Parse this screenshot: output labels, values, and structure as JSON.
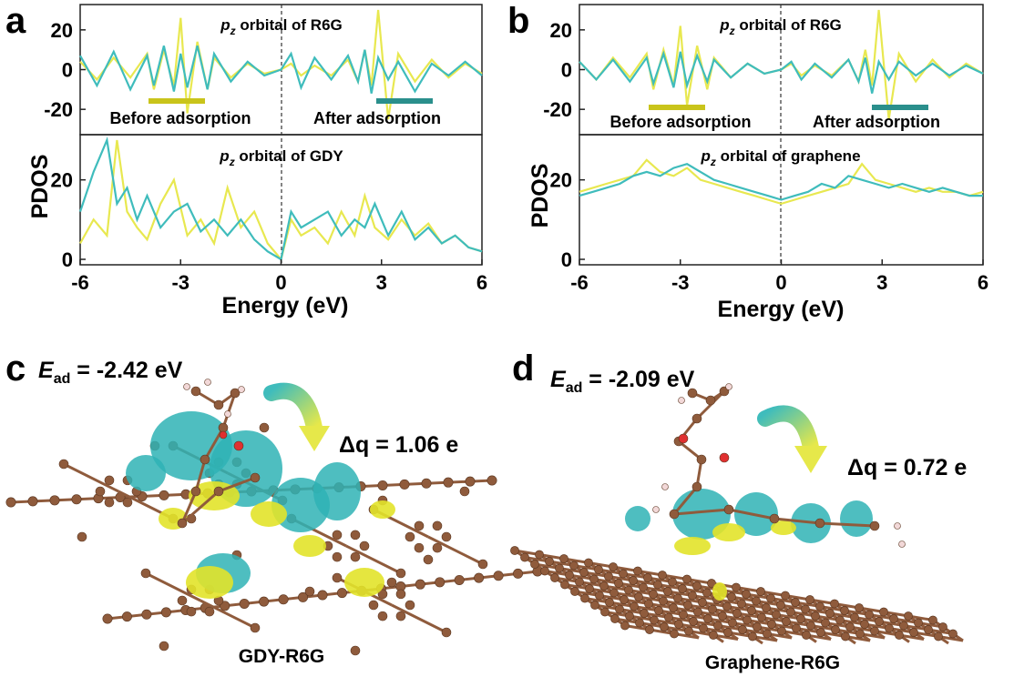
{
  "colors": {
    "before": "#e8e850",
    "after": "#3fbcbc",
    "before_bar": "#c9c41b",
    "after_bar": "#2a8f8c",
    "carbon": "#8f5b3c",
    "hydrogen": "#f2d8d8",
    "oxygen": "#e03030"
  },
  "panels": {
    "a": {
      "letter": "a",
      "top_title_main": "p",
      "top_title_sub": "z",
      "top_title_rest": " orbital of R6G",
      "bottom_title_main": "p",
      "bottom_title_sub": "z",
      "bottom_title_rest": " orbital of GDY",
      "before_label": "Before adsorption",
      "after_label": "After adsorption"
    },
    "b": {
      "letter": "b",
      "top_title_main": "p",
      "top_title_sub": "z",
      "top_title_rest": " orbital of R6G",
      "bottom_title_main": "p",
      "bottom_title_sub": "z",
      "bottom_title_rest": " orbital of graphene",
      "before_label": "Before adsorption",
      "after_label": "After adsorption"
    },
    "c": {
      "letter": "c",
      "ead_symbol": "E",
      "ead_sub": "ad",
      "ead_value": " = -2.42 eV",
      "dq_symbol": "Δq",
      "dq_value": " = 1.06 e",
      "label": "GDY-R6G"
    },
    "d": {
      "letter": "d",
      "ead_symbol": "E",
      "ead_sub": "ad",
      "ead_value": " = -2.09 eV",
      "dq_symbol": "Δq",
      "dq_value": " = 0.72 e",
      "label": "Graphene-R6G"
    }
  },
  "chart_data": [
    {
      "type": "line",
      "panel": "a",
      "xlabel": "Energy (eV)",
      "ylabel": "PDOS",
      "xlim": [
        -6,
        6
      ],
      "xticks": [
        "-6",
        "-3",
        "0",
        "3",
        "6"
      ],
      "subplots": [
        {
          "title": "pz orbital of R6G",
          "ylim": [
            -30,
            30
          ],
          "yticks": [
            "20",
            "0",
            "-20"
          ],
          "series": [
            {
              "name": "Before adsorption",
              "x": [
                -6,
                -5.5,
                -5,
                -4.5,
                -4,
                -3.8,
                -3.5,
                -3.2,
                -3.0,
                -2.8,
                -2.5,
                -2.2,
                -2.0,
                -1.5,
                -1,
                -0.5,
                0,
                0.3,
                0.6,
                1,
                1.5,
                2,
                2.3,
                2.5,
                2.7,
                2.9,
                3.2,
                3.5,
                4,
                4.5,
                5,
                5.5,
                6
              ],
              "y": [
                4,
                -5,
                6,
                -4,
                8,
                -10,
                10,
                -8,
                26,
                -22,
                14,
                -10,
                6,
                -4,
                3,
                -2,
                0,
                3,
                -3,
                2,
                -3,
                5,
                -6,
                10,
                -8,
                30,
                -25,
                8,
                -6,
                5,
                -4,
                3,
                -2
              ]
            },
            {
              "name": "After adsorption",
              "x": [
                -6,
                -5.5,
                -5,
                -4.5,
                -4,
                -3.8,
                -3.5,
                -3.2,
                -3.0,
                -2.8,
                -2.5,
                -2.2,
                -2.0,
                -1.5,
                -1,
                -0.5,
                0,
                0.3,
                0.6,
                1,
                1.5,
                2,
                2.3,
                2.5,
                2.7,
                2.9,
                3.2,
                3.5,
                4,
                4.5,
                5,
                5.5,
                6
              ],
              "y": [
                7,
                -8,
                9,
                -10,
                7,
                -8,
                12,
                -11,
                8,
                -9,
                12,
                -10,
                8,
                -6,
                4,
                -3,
                0,
                8,
                -9,
                6,
                -5,
                7,
                -6,
                10,
                -12,
                6,
                -5,
                4,
                -11,
                3,
                -3,
                4,
                -3
              ]
            }
          ]
        },
        {
          "title": "pz orbital of GDY",
          "ylim": [
            0,
            30
          ],
          "yticks": [
            "20",
            "0"
          ],
          "series": [
            {
              "name": "Before adsorption",
              "x": [
                -6,
                -5.6,
                -5.2,
                -4.9,
                -4.6,
                -4.3,
                -4.0,
                -3.6,
                -3.2,
                -2.8,
                -2.4,
                -2.0,
                -1.6,
                -1.2,
                -0.8,
                -0.4,
                0,
                0.3,
                0.6,
                1,
                1.4,
                1.8,
                2.2,
                2.5,
                2.8,
                3.2,
                3.6,
                4,
                4.4,
                4.8,
                5.2,
                5.6,
                6
              ],
              "y": [
                4,
                10,
                6,
                30,
                12,
                8,
                5,
                14,
                20,
                6,
                10,
                4,
                18,
                8,
                12,
                4,
                0,
                10,
                6,
                8,
                4,
                12,
                6,
                16,
                8,
                5,
                10,
                6,
                9,
                4,
                6,
                3,
                2
              ]
            },
            {
              "name": "After adsorption",
              "x": [
                -6,
                -5.6,
                -5.2,
                -4.9,
                -4.6,
                -4.3,
                -4.0,
                -3.6,
                -3.2,
                -2.8,
                -2.4,
                -2.0,
                -1.6,
                -1.2,
                -0.8,
                -0.4,
                0,
                0.3,
                0.6,
                1,
                1.4,
                1.8,
                2.2,
                2.5,
                2.8,
                3.2,
                3.6,
                4,
                4.4,
                4.8,
                5.2,
                5.6,
                6
              ],
              "y": [
                12,
                22,
                30,
                14,
                18,
                10,
                16,
                8,
                12,
                14,
                7,
                10,
                6,
                10,
                5,
                2,
                0,
                12,
                8,
                10,
                12,
                6,
                10,
                8,
                14,
                6,
                12,
                5,
                8,
                4,
                6,
                3,
                2
              ]
            }
          ]
        }
      ]
    },
    {
      "type": "line",
      "panel": "b",
      "xlabel": "Energy (eV)",
      "ylabel": "PDOS",
      "xlim": [
        -6,
        6
      ],
      "xticks": [
        "-6",
        "-3",
        "0",
        "3",
        "6"
      ],
      "subplots": [
        {
          "title": "pz orbital of R6G",
          "ylim": [
            -30,
            30
          ],
          "yticks": [
            "20",
            "0",
            "-20"
          ],
          "series": [
            {
              "name": "Before adsorption",
              "x": [
                -6,
                -5.5,
                -5,
                -4.5,
                -4,
                -3.8,
                -3.5,
                -3.2,
                -3.0,
                -2.8,
                -2.5,
                -2.2,
                -2.0,
                -1.5,
                -1,
                -0.5,
                0,
                0.3,
                0.6,
                1,
                1.5,
                2,
                2.3,
                2.5,
                2.7,
                2.9,
                3.2,
                3.5,
                4,
                4.5,
                5,
                5.5,
                6
              ],
              "y": [
                4,
                -5,
                6,
                -4,
                8,
                -10,
                10,
                -8,
                22,
                -18,
                12,
                -10,
                6,
                -4,
                3,
                -2,
                0,
                3,
                -3,
                2,
                -3,
                5,
                -6,
                10,
                -8,
                30,
                -25,
                8,
                -6,
                5,
                -4,
                3,
                -2
              ]
            },
            {
              "name": "After adsorption",
              "x": [
                -6,
                -5.5,
                -5,
                -4.5,
                -4,
                -3.8,
                -3.5,
                -3.2,
                -3.0,
                -2.8,
                -2.5,
                -2.2,
                -2.0,
                -1.5,
                -1,
                -0.5,
                0,
                0.3,
                0.6,
                1,
                1.5,
                2,
                2.3,
                2.5,
                2.7,
                2.9,
                3.2,
                3.5,
                4,
                4.5,
                5,
                5.5,
                6
              ],
              "y": [
                4,
                -5,
                5,
                -6,
                6,
                -7,
                8,
                -9,
                9,
                -8,
                7,
                -6,
                5,
                -4,
                3,
                -2,
                0,
                4,
                -5,
                3,
                -4,
                5,
                -6,
                6,
                -12,
                4,
                -5,
                4,
                -3,
                3,
                -3,
                2,
                -2
              ]
            }
          ]
        },
        {
          "title": "pz orbital of graphene",
          "ylim": [
            0,
            30
          ],
          "yticks": [
            "20",
            "0"
          ],
          "series": [
            {
              "name": "Before adsorption",
              "x": [
                -6,
                -5.6,
                -5.2,
                -4.8,
                -4.4,
                -4.0,
                -3.6,
                -3.2,
                -2.8,
                -2.4,
                -2.0,
                -1.6,
                -1.2,
                -0.8,
                -0.4,
                0,
                0.4,
                0.8,
                1.2,
                1.6,
                2.0,
                2.4,
                2.8,
                3.2,
                3.6,
                4.0,
                4.4,
                4.8,
                5.2,
                5.6,
                6
              ],
              "y": [
                17,
                18,
                19,
                20,
                21,
                25,
                22,
                21,
                23,
                20,
                19,
                18,
                17,
                16,
                15,
                14,
                15,
                16,
                17,
                18,
                19,
                24,
                20,
                19,
                18,
                17,
                18,
                17,
                17,
                16,
                17
              ]
            },
            {
              "name": "After adsorption",
              "x": [
                -6,
                -5.6,
                -5.2,
                -4.8,
                -4.4,
                -4.0,
                -3.6,
                -3.2,
                -2.8,
                -2.4,
                -2.0,
                -1.6,
                -1.2,
                -0.8,
                -0.4,
                0,
                0.4,
                0.8,
                1.2,
                1.6,
                2.0,
                2.4,
                2.8,
                3.2,
                3.6,
                4.0,
                4.4,
                4.8,
                5.2,
                5.6,
                6
              ],
              "y": [
                16,
                17,
                18,
                19,
                21,
                22,
                21,
                23,
                24,
                22,
                20,
                19,
                18,
                17,
                16,
                15,
                16,
                17,
                19,
                18,
                21,
                20,
                19,
                18,
                19,
                18,
                17,
                18,
                17,
                16,
                16
              ]
            }
          ]
        }
      ]
    }
  ]
}
